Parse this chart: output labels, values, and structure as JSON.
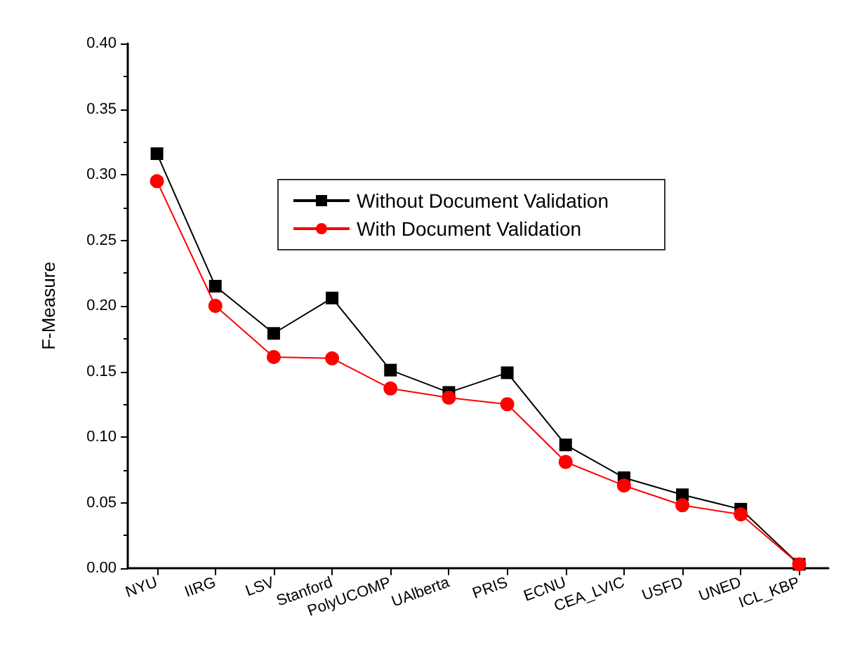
{
  "chart_data": {
    "type": "line",
    "ylabel": "F-Measure",
    "categories": [
      "NYU",
      "IIRG",
      "LSV",
      "Stanford",
      "PolyUCOMP",
      "UAlberta",
      "PRIS",
      "ECNU",
      "CEA_LVIC",
      "USFD",
      "UNED",
      "ICL_KBP"
    ],
    "series": [
      {
        "name": "Without Document Validation",
        "color": "#000000",
        "marker": "square",
        "values": [
          0.316,
          0.215,
          0.179,
          0.206,
          0.151,
          0.134,
          0.149,
          0.094,
          0.069,
          0.056,
          0.045,
          0.003
        ]
      },
      {
        "name": "With Document Validation",
        "color": "#ff0000",
        "marker": "circle",
        "values": [
          0.295,
          0.2,
          0.161,
          0.16,
          0.137,
          0.13,
          0.125,
          0.081,
          0.063,
          0.048,
          0.041,
          0.003
        ]
      }
    ],
    "ylim": [
      0,
      0.4
    ],
    "yticks": [
      {
        "value": 0,
        "label": "0.00"
      },
      {
        "value": 0.05,
        "label": "0.05"
      },
      {
        "value": 0.1,
        "label": "0.10"
      },
      {
        "value": 0.15,
        "label": "0.15"
      },
      {
        "value": 0.2,
        "label": "0.20"
      },
      {
        "value": 0.25,
        "label": "0.25"
      },
      {
        "value": 0.3,
        "label": "0.30"
      },
      {
        "value": 0.35,
        "label": "0.35"
      },
      {
        "value": 0.4,
        "label": "0.40"
      }
    ],
    "grid": false,
    "legend": "top right",
    "line_style": "solid"
  }
}
